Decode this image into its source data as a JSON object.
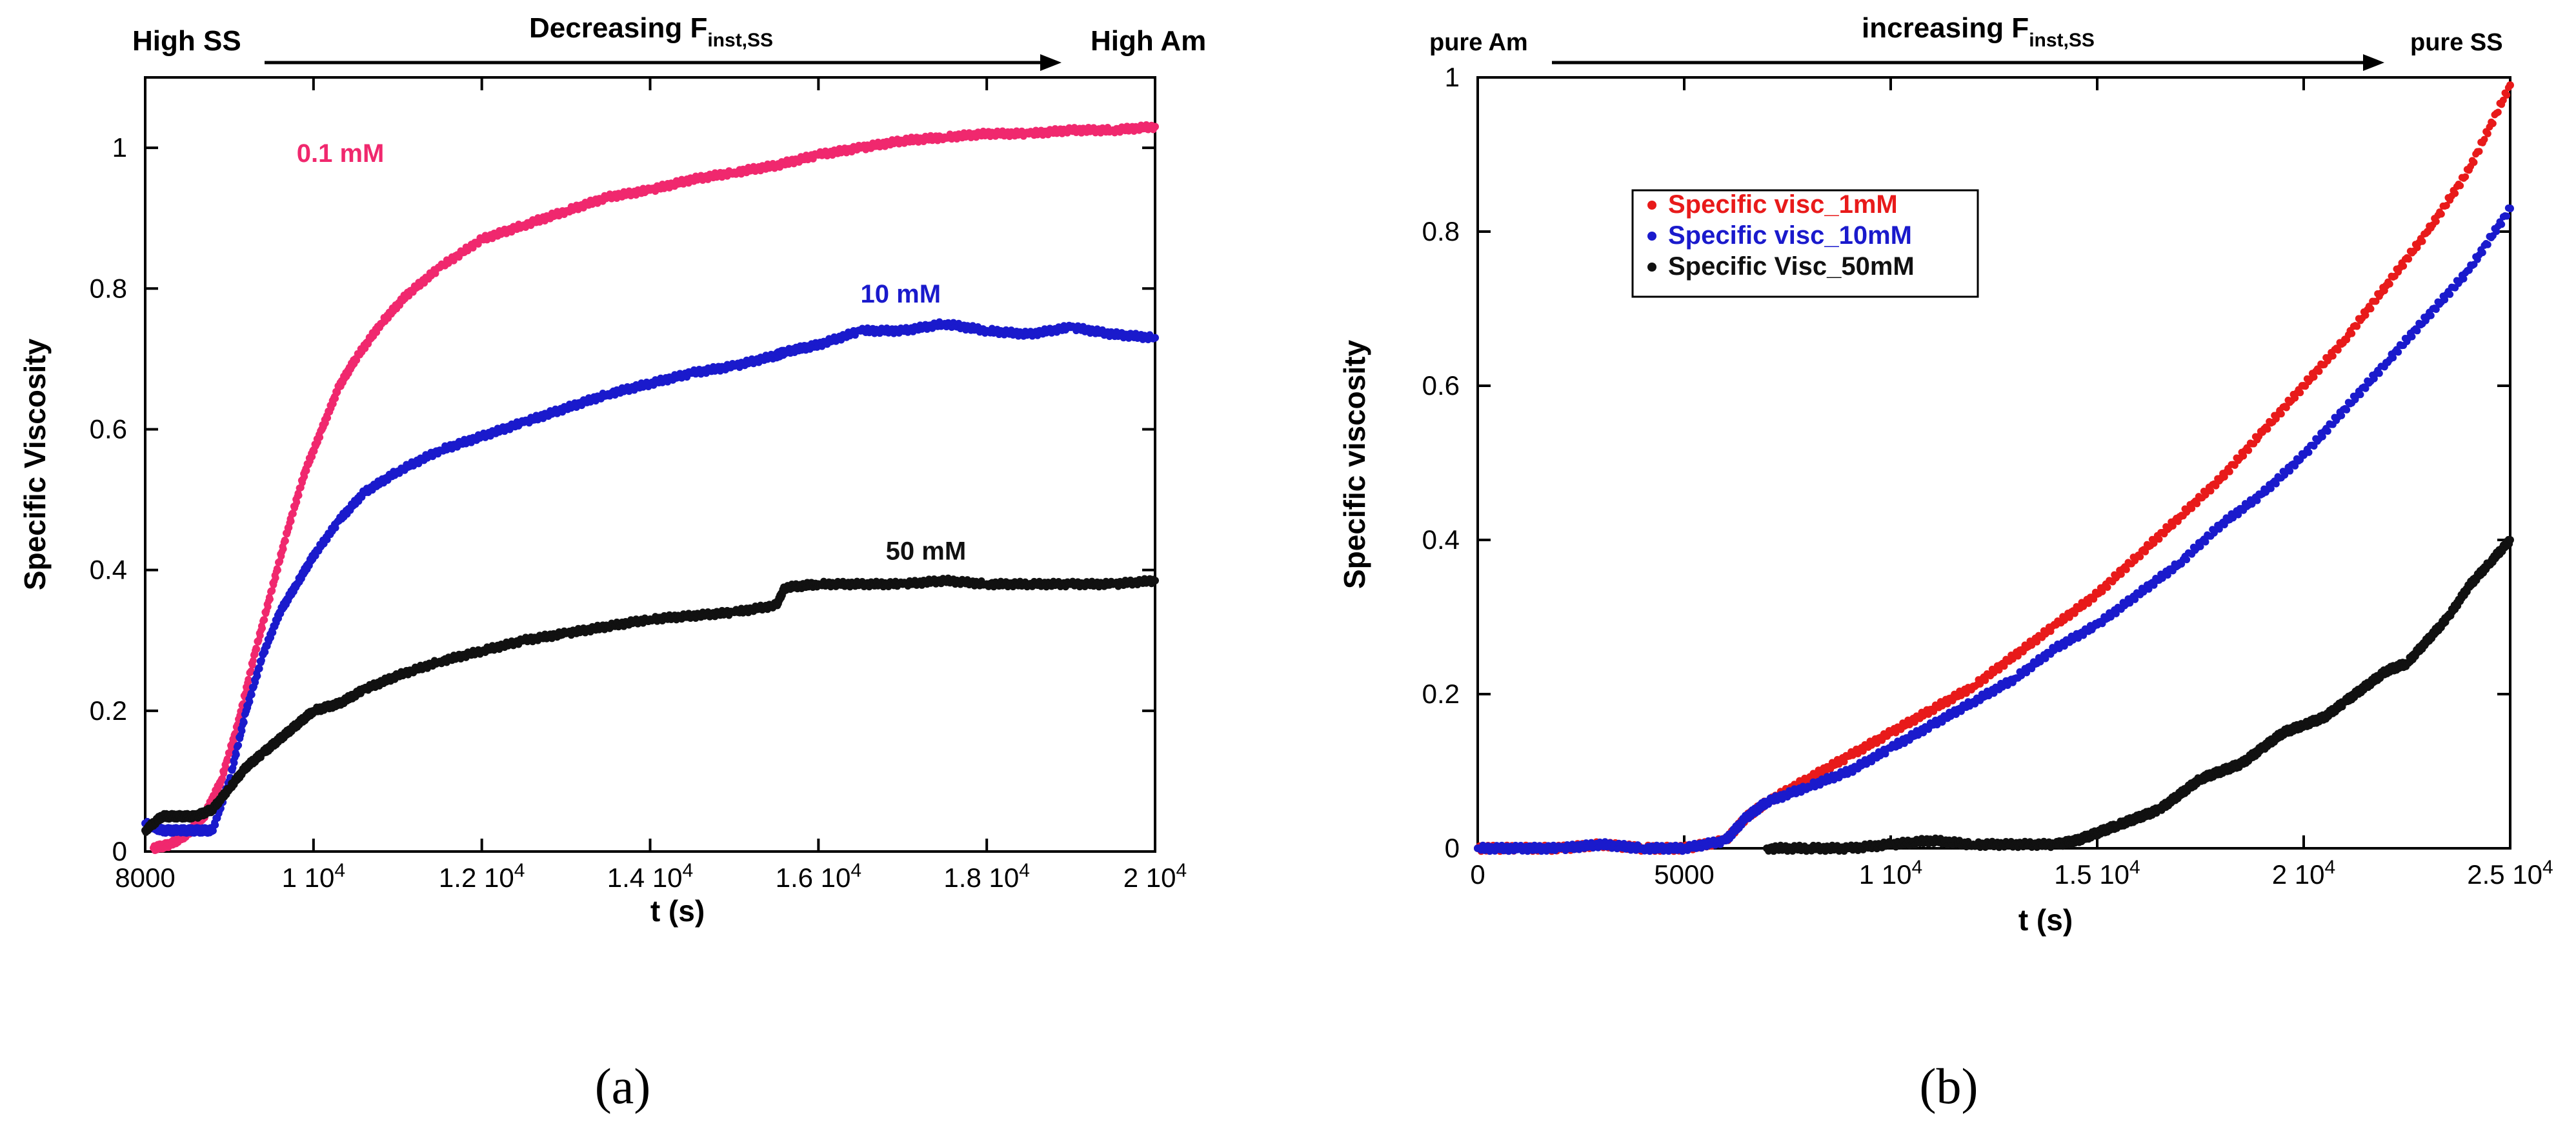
{
  "chart_data": [
    {
      "id": "a",
      "type": "scatter",
      "caption": "(a)",
      "ylabel": "Specific Viscosity",
      "xlabel": "t (s)",
      "xlim": [
        8000,
        20000
      ],
      "ylim": [
        0,
        1.1
      ],
      "xticks": [
        {
          "value": 8000,
          "main": "8000",
          "exp": ""
        },
        {
          "value": 10000,
          "main": "1 10",
          "exp": "4"
        },
        {
          "value": 12000,
          "main": "1.2 10",
          "exp": "4"
        },
        {
          "value": 14000,
          "main": "1.4 10",
          "exp": "4"
        },
        {
          "value": 16000,
          "main": "1.6 10",
          "exp": "4"
        },
        {
          "value": 18000,
          "main": "1.8 10",
          "exp": "4"
        },
        {
          "value": 20000,
          "main": "2 10",
          "exp": "4"
        }
      ],
      "yticks": [
        {
          "value": 0,
          "label": "0"
        },
        {
          "value": 0.2,
          "label": "0.2"
        },
        {
          "value": 0.4,
          "label": "0.4"
        },
        {
          "value": 0.6,
          "label": "0.6"
        },
        {
          "value": 0.8,
          "label": "0.8"
        },
        {
          "value": 1,
          "label": "1"
        }
      ],
      "header": {
        "left": "High SS",
        "middle_main": "Decreasing F",
        "middle_sub": "inst,SS",
        "right": "High Am"
      },
      "series": [
        {
          "name": "0.1 mM",
          "color": "#f0286e",
          "label_at": [
            9800,
            0.98
          ],
          "x": [
            8100,
            8300,
            8500,
            8700,
            8900,
            9100,
            9300,
            9500,
            9700,
            9900,
            10100,
            10300,
            10500,
            10800,
            11100,
            11500,
            12000,
            12500,
            13000,
            13500,
            14000,
            14500,
            15000,
            15500,
            16000,
            16500,
            17000,
            17500,
            18000,
            18500,
            19000,
            19500,
            20000
          ],
          "y": [
            0.005,
            0.01,
            0.025,
            0.05,
            0.1,
            0.18,
            0.28,
            0.37,
            0.46,
            0.54,
            0.6,
            0.66,
            0.7,
            0.75,
            0.79,
            0.83,
            0.87,
            0.89,
            0.91,
            0.93,
            0.94,
            0.955,
            0.965,
            0.975,
            0.99,
            1.0,
            1.01,
            1.015,
            1.02,
            1.02,
            1.025,
            1.025,
            1.03
          ]
        },
        {
          "name": "10 mM",
          "color": "#1a1acc",
          "label_at": [
            16500,
            0.78
          ],
          "x": [
            8000,
            8200,
            8400,
            8600,
            8800,
            9000,
            9200,
            9400,
            9600,
            9800,
            10000,
            10300,
            10600,
            11000,
            11500,
            12000,
            12500,
            13000,
            13500,
            14000,
            14500,
            15000,
            15500,
            15600,
            16000,
            16500,
            17000,
            17500,
            18000,
            18500,
            19000,
            19500,
            20000
          ],
          "y": [
            0.04,
            0.03,
            0.03,
            0.03,
            0.03,
            0.1,
            0.2,
            0.28,
            0.34,
            0.38,
            0.42,
            0.47,
            0.51,
            0.54,
            0.57,
            0.59,
            0.61,
            0.63,
            0.65,
            0.665,
            0.68,
            0.69,
            0.705,
            0.71,
            0.72,
            0.74,
            0.74,
            0.75,
            0.74,
            0.735,
            0.745,
            0.735,
            0.73
          ]
        },
        {
          "name": "50 mM",
          "color": "#111111",
          "label_at": [
            16800,
            0.415
          ],
          "x": [
            8000,
            8200,
            8400,
            8600,
            8800,
            9000,
            9200,
            9400,
            9600,
            9800,
            10000,
            10300,
            10600,
            11000,
            11500,
            12000,
            12500,
            13000,
            13500,
            14000,
            14500,
            15000,
            15500,
            15600,
            16000,
            16500,
            17000,
            17500,
            18000,
            18500,
            19000,
            19500,
            20000
          ],
          "y": [
            0.03,
            0.05,
            0.05,
            0.05,
            0.06,
            0.09,
            0.12,
            0.14,
            0.16,
            0.18,
            0.2,
            0.21,
            0.23,
            0.25,
            0.27,
            0.285,
            0.3,
            0.31,
            0.32,
            0.33,
            0.335,
            0.34,
            0.35,
            0.375,
            0.38,
            0.38,
            0.38,
            0.385,
            0.38,
            0.38,
            0.38,
            0.38,
            0.385
          ]
        }
      ]
    },
    {
      "id": "b",
      "type": "scatter",
      "caption": "(b)",
      "ylabel": "Specific viscosity",
      "xlabel": "t (s)",
      "xlim": [
        0,
        25000
      ],
      "ylim": [
        0,
        1
      ],
      "xticks": [
        {
          "value": 0,
          "main": "0",
          "exp": ""
        },
        {
          "value": 5000,
          "main": "5000",
          "exp": ""
        },
        {
          "value": 10000,
          "main": "1 10",
          "exp": "4"
        },
        {
          "value": 15000,
          "main": "1.5 10",
          "exp": "4"
        },
        {
          "value": 20000,
          "main": "2 10",
          "exp": "4"
        },
        {
          "value": 25000,
          "main": "2.5 10",
          "exp": "4"
        }
      ],
      "yticks": [
        {
          "value": 0,
          "label": "0"
        },
        {
          "value": 0.2,
          "label": "0.2"
        },
        {
          "value": 0.4,
          "label": "0.4"
        },
        {
          "value": 0.6,
          "label": "0.6"
        },
        {
          "value": 0.8,
          "label": "0.8"
        },
        {
          "value": 1,
          "label": "1"
        }
      ],
      "header": {
        "left": "pure Am",
        "middle_main": "increasing F",
        "middle_sub": "inst,SS",
        "right": "pure SS"
      },
      "legend_position": "upper-left",
      "series": [
        {
          "name": "Specific visc_1mM",
          "color": "#e81a1a",
          "x": [
            0,
            1000,
            2000,
            3000,
            4000,
            5000,
            6000,
            6500,
            7000,
            8000,
            9000,
            10000,
            11000,
            12000,
            13000,
            14000,
            15000,
            16000,
            17000,
            18000,
            19000,
            20000,
            21000,
            22000,
            23000,
            24000,
            25000
          ],
          "y": [
            0,
            0,
            0,
            0.005,
            0,
            0,
            0.01,
            0.04,
            0.06,
            0.09,
            0.12,
            0.15,
            0.18,
            0.21,
            0.25,
            0.29,
            0.33,
            0.38,
            0.43,
            0.48,
            0.54,
            0.6,
            0.66,
            0.73,
            0.8,
            0.88,
            0.99
          ]
        },
        {
          "name": "Specific visc_10mM",
          "color": "#1a1acc",
          "x": [
            0,
            1000,
            2000,
            3000,
            4000,
            5000,
            6000,
            6500,
            7000,
            8000,
            9000,
            10000,
            11000,
            12000,
            13000,
            14000,
            15000,
            16000,
            17000,
            18000,
            19000,
            20000,
            21000,
            22000,
            23000,
            24000,
            25000
          ],
          "y": [
            0,
            0,
            0,
            0.005,
            0,
            0,
            0.01,
            0.04,
            0.06,
            0.08,
            0.1,
            0.13,
            0.16,
            0.19,
            0.22,
            0.26,
            0.29,
            0.33,
            0.37,
            0.42,
            0.46,
            0.51,
            0.57,
            0.63,
            0.69,
            0.75,
            0.83
          ]
        },
        {
          "name": "Specific Visc_50mM",
          "color": "#111111",
          "x": [
            7000,
            8000,
            9000,
            10000,
            11000,
            12000,
            13000,
            14000,
            14500,
            15000,
            15500,
            16000,
            16500,
            17000,
            17500,
            18000,
            18500,
            19000,
            19500,
            20000,
            20500,
            21000,
            21500,
            22000,
            22500,
            23000,
            23500,
            24000,
            24500,
            25000
          ],
          "y": [
            0,
            0,
            0,
            0.005,
            0.01,
            0.005,
            0.005,
            0.005,
            0.01,
            0.02,
            0.03,
            0.04,
            0.05,
            0.07,
            0.09,
            0.1,
            0.11,
            0.13,
            0.15,
            0.16,
            0.17,
            0.19,
            0.21,
            0.23,
            0.24,
            0.27,
            0.3,
            0.34,
            0.37,
            0.4
          ]
        }
      ]
    }
  ]
}
